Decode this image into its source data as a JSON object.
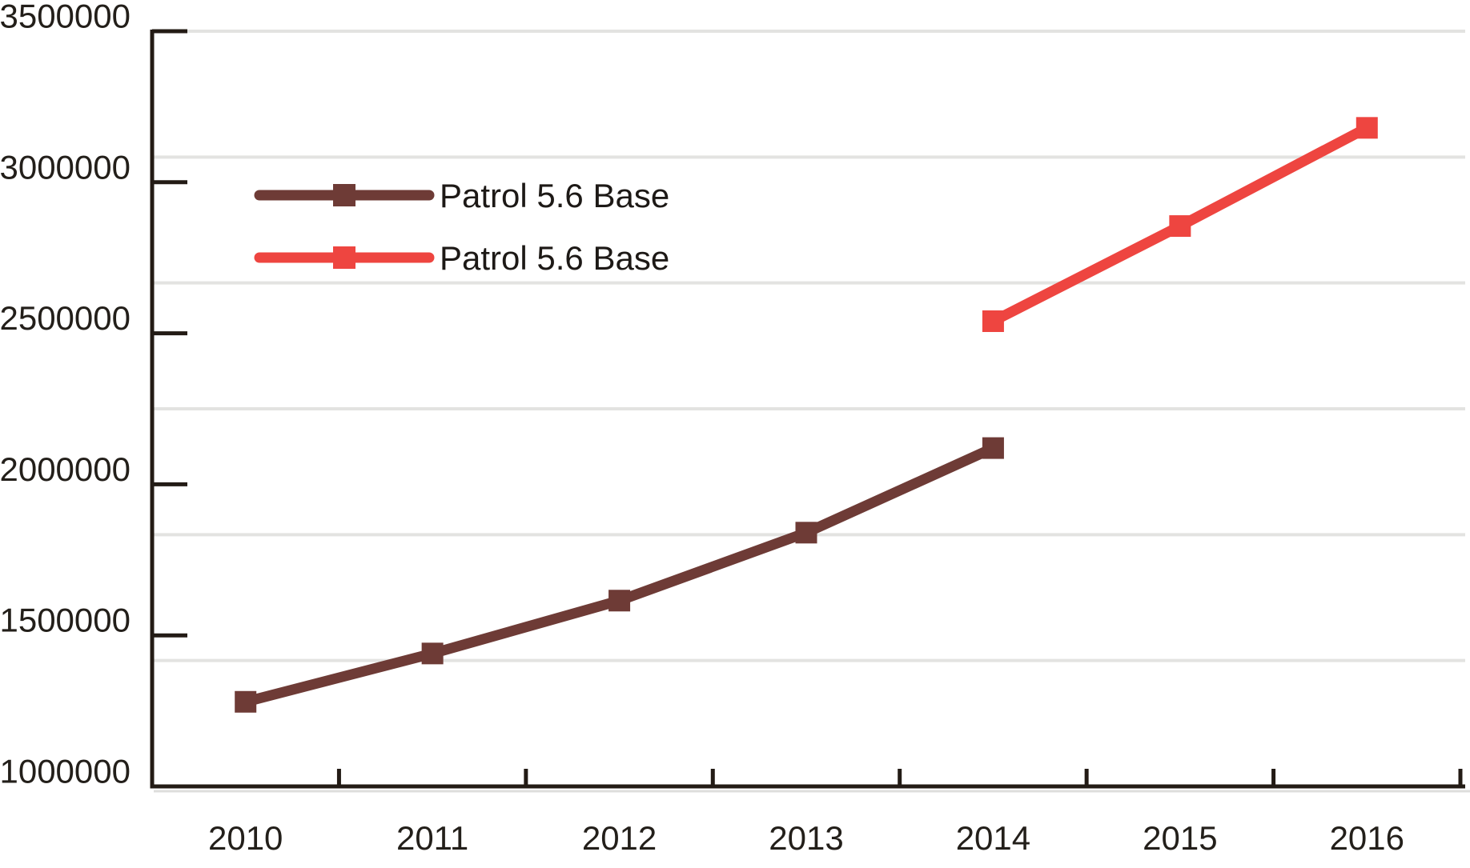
{
  "chart_data": {
    "type": "line",
    "x": [
      "2010",
      "2011",
      "2012",
      "2013",
      "2014",
      "2015",
      "2016"
    ],
    "series": [
      {
        "name": "Patrol 5.6 Base",
        "color": "#6e3b36",
        "values": [
          1280000,
          1440000,
          1615000,
          1840000,
          2120000,
          null,
          null
        ]
      },
      {
        "name": "Patrol 5.6 Base",
        "color": "#ee4540",
        "values": [
          null,
          null,
          null,
          null,
          2540000,
          2855000,
          3180000
        ]
      }
    ],
    "title": "",
    "xlabel": "",
    "ylabel": "",
    "ylim": [
      1000000,
      3500000
    ],
    "y_ticks": [
      1000000,
      1500000,
      2000000,
      2500000,
      3000000,
      3500000
    ],
    "y_tick_labels": [
      "1000000",
      "1500000",
      "2000000",
      "2500000",
      "3000000",
      "3500000"
    ],
    "x_tick_labels": [
      "2010",
      "2011",
      "2012",
      "2013",
      "2014",
      "2015",
      "2016"
    ],
    "grid": "horizontal",
    "grid_divisions": 6,
    "legend_position": "upper-left-inside",
    "marker": "square",
    "axis_color": "#231b15",
    "grid_color": "#e3e3e1",
    "axis_shadow_color": "#dededc",
    "background_color": "#ffffff"
  }
}
